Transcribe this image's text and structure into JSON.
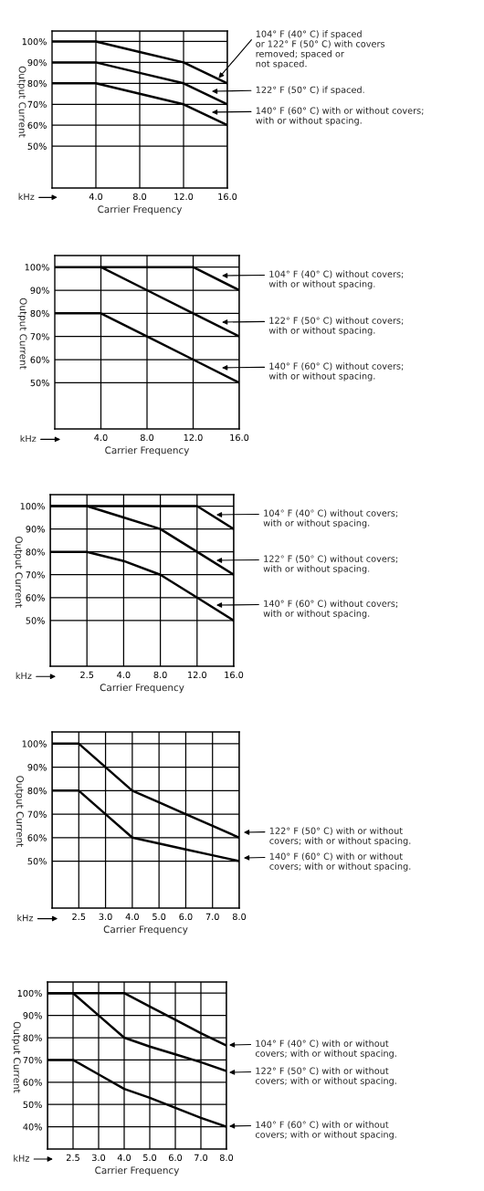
{
  "chart_data": [
    {
      "type": "line",
      "xlabel": "Carrier Frequency",
      "ylabel": "Output Current",
      "x": [
        0,
        4,
        8,
        12,
        16
      ],
      "xlim": [
        0,
        16
      ],
      "xticks": [
        {
          "value": 4,
          "label": "4.0"
        },
        {
          "value": 8,
          "label": "8.0"
        },
        {
          "value": 12,
          "label": "12.0"
        },
        {
          "value": 16,
          "label": "16.0"
        }
      ],
      "ylim": [
        30,
        105
      ],
      "yticks": [
        {
          "value": 50,
          "label": "50%"
        },
        {
          "value": 60,
          "label": "60%"
        },
        {
          "value": 70,
          "label": "70%"
        },
        {
          "value": 80,
          "label": "80%"
        },
        {
          "value": 90,
          "label": "90%"
        },
        {
          "value": 100,
          "label": "100%"
        }
      ],
      "grid": true,
      "series": [
        {
          "color": "#000000",
          "values": [
            100,
            100,
            95,
            90,
            80
          ]
        },
        {
          "color": "#000000",
          "values": [
            90,
            90,
            85,
            80,
            70
          ]
        },
        {
          "color": "#000000",
          "values": [
            80,
            80,
            75,
            70,
            60
          ]
        }
      ],
      "annotations": [
        "kHz",
        {
          "text": "104° F (40° C) if spaced\nor 122° F (50° C) with covers\nremoved; spaced or\nnot spaced.",
          "x": 15.2,
          "y": 82.5
        },
        "122° F (50° C) if spaced.",
        "140° F (60° C) with or without covers;\nwith or without spacing."
      ]
    },
    {
      "type": "line",
      "xlabel": "Carrier Frequency",
      "ylabel": "Output Current",
      "x": [
        0,
        4,
        8,
        12,
        16
      ],
      "xlim": [
        0,
        16
      ],
      "xticks": [
        {
          "value": 4,
          "label": "4.0"
        },
        {
          "value": 8,
          "label": "8.0"
        },
        {
          "value": 12,
          "label": "12.0"
        },
        {
          "value": 16,
          "label": "16.0"
        }
      ],
      "ylim": [
        30,
        105
      ],
      "yticks": [
        {
          "value": 50,
          "label": "50%"
        },
        {
          "value": 60,
          "label": "60%"
        },
        {
          "value": 70,
          "label": "70%"
        },
        {
          "value": 80,
          "label": "80%"
        },
        {
          "value": 90,
          "label": "90%"
        },
        {
          "value": 100,
          "label": "100%"
        }
      ],
      "grid": true,
      "series": [
        {
          "color": "#000000",
          "values": [
            100,
            100,
            100,
            100,
            90
          ]
        },
        {
          "color": "#000000",
          "values": [
            null,
            100,
            90,
            80,
            70
          ]
        },
        {
          "color": "#000000",
          "values": [
            80,
            80,
            70,
            60,
            50
          ]
        }
      ],
      "annotations": [
        "kHz",
        "104° F (40° C) without covers;\nwith or without spacing.",
        "122° F (50° C) without covers;\nwith or without spacing.",
        "140° F (60° C) without covers;\nwith or without spacing."
      ]
    },
    {
      "type": "line",
      "xlabel": "Carrier Frequency",
      "ylabel": "Output Current",
      "categories": [
        null,
        "2.5",
        "4.0",
        "8.0",
        "12.0",
        "16.0"
      ],
      "ylim": [
        30,
        105
      ],
      "yticks": [
        {
          "value": 50,
          "label": "50%"
        },
        {
          "value": 60,
          "label": "60%"
        },
        {
          "value": 70,
          "label": "70%"
        },
        {
          "value": 80,
          "label": "80%"
        },
        {
          "value": 90,
          "label": "90%"
        },
        {
          "value": 100,
          "label": "100%"
        }
      ],
      "grid": true,
      "series": [
        {
          "color": "#000000",
          "values": [
            100,
            100,
            100,
            100,
            100,
            90
          ]
        },
        {
          "color": "#000000",
          "values": [
            100,
            100,
            95,
            90,
            80,
            70
          ]
        },
        {
          "color": "#000000",
          "values": [
            80,
            80,
            76,
            70,
            60,
            50
          ]
        }
      ],
      "annotations": [
        "kHz",
        "104° F (40° C) without covers;\nwith or without spacing.",
        "122° F (50° C) without covers;\nwith or without spacing.",
        "140° F (60° C) without covers;\nwith or without spacing."
      ]
    },
    {
      "type": "line",
      "xlabel": "Carrier Frequency",
      "ylabel": "Output Current",
      "categories": [
        null,
        "2.5",
        "3.0",
        "4.0",
        "5.0",
        "6.0",
        "7.0",
        "8.0"
      ],
      "ylim": [
        30,
        105
      ],
      "yticks": [
        {
          "value": 50,
          "label": "50%"
        },
        {
          "value": 60,
          "label": "60%"
        },
        {
          "value": 70,
          "label": "70%"
        },
        {
          "value": 80,
          "label": "80%"
        },
        {
          "value": 90,
          "label": "90%"
        },
        {
          "value": 100,
          "label": "100%"
        }
      ],
      "grid": true,
      "series": [
        {
          "color": "#000000",
          "values": [
            100,
            100,
            90,
            80,
            75,
            70,
            65,
            60
          ]
        },
        {
          "color": "#000000",
          "values": [
            80,
            80,
            70,
            60,
            57.5,
            55,
            52.5,
            50
          ]
        }
      ],
      "annotations": [
        "kHz",
        "122° F (50° C) with or without\ncovers; with or without spacing.",
        "140° F (60° C) with or without\ncovers; with or without spacing."
      ]
    },
    {
      "type": "line",
      "xlabel": "Carrier Frequency",
      "ylabel": "Output Current",
      "categories": [
        null,
        "2.5",
        "3.0",
        "4.0",
        "5.0",
        "6.0",
        "7.0",
        "8.0"
      ],
      "ylim": [
        30,
        105
      ],
      "yticks": [
        {
          "value": 40,
          "label": "40%"
        },
        {
          "value": 50,
          "label": "50%"
        },
        {
          "value": 60,
          "label": "60%"
        },
        {
          "value": 70,
          "label": "70%"
        },
        {
          "value": 80,
          "label": "80%"
        },
        {
          "value": 90,
          "label": "90%"
        },
        {
          "value": 100,
          "label": "100%"
        }
      ],
      "grid": true,
      "series": [
        {
          "color": "#000000",
          "values": [
            100,
            100,
            100,
            100,
            94,
            88,
            82,
            76.5
          ]
        },
        {
          "color": "#000000",
          "values": [
            100,
            100,
            90,
            80,
            76,
            72.5,
            69,
            65
          ]
        },
        {
          "color": "#000000",
          "values": [
            70,
            70,
            63.5,
            57,
            53,
            48.5,
            44,
            40
          ]
        }
      ],
      "annotations": [
        "kHz",
        "104° F (40° C) with or without\ncovers; with or without spacing.",
        "122° F (50° C) with or without\ncovers; with or without spacing.",
        "140° F (60° C) with or without\ncovers; with or without spacing."
      ]
    }
  ]
}
